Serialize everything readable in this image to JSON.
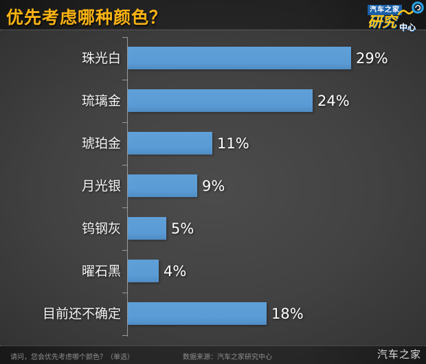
{
  "title": "优先考虑哪种颜色？",
  "logo": {
    "brand": "汽车之家",
    "dept_main": "研究",
    "dept_sub": "中心"
  },
  "chart_data": {
    "type": "bar",
    "orientation": "horizontal",
    "title": "优先考虑哪种颜色？",
    "categories": [
      "珠光白",
      "琉璃金",
      "琥珀金",
      "月光银",
      "钨钢灰",
      "曜石黑",
      "目前还不确定"
    ],
    "values": [
      29,
      24,
      11,
      9,
      5,
      4,
      18
    ],
    "value_labels": [
      "29%",
      "24%",
      "11%",
      "9%",
      "5%",
      "4%",
      "18%"
    ],
    "unit": "%",
    "xlim": [
      0,
      30
    ],
    "grid": false,
    "legend": "none",
    "bar_color": "#5b9bd5"
  },
  "footer": {
    "question": "请问，您会优先考虑哪个颜色？（单选）",
    "source": "数据来源：汽车之家研究中心",
    "watermark": "汽车之家"
  },
  "colors": {
    "title_text": "#fbb414",
    "bar": "#5b9bd5",
    "label_text": "#f5f5f5",
    "axis": "#9a9a9a",
    "background_center": "#4c4c4c",
    "background_edge": "#222222",
    "logo_blue": "#1b5fa7",
    "logo_yellow": "#ffc619"
  }
}
